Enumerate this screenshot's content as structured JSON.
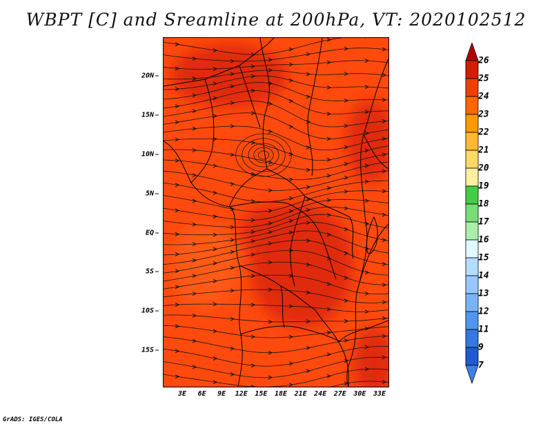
{
  "title": "WBPT [C] and Sreamline at 200hPa, VT: 2020102512",
  "credit": "GrADS: IGES/COLA",
  "map": {
    "lat_labels": [
      "20N",
      "15N",
      "10N",
      "5N",
      "EQ",
      "5S",
      "10S",
      "15S"
    ],
    "lon_labels": [
      "3E",
      "6E",
      "9E",
      "12E",
      "15E",
      "18E",
      "21E",
      "24E",
      "27E",
      "30E",
      "33E"
    ],
    "field_colors": {
      "base": "#ff4a0e",
      "dark": "#e02a08",
      "light": "#ff5a14"
    }
  },
  "colorbar": {
    "labels": [
      "26",
      "25",
      "24",
      "23",
      "22",
      "21",
      "20",
      "19",
      "18",
      "17",
      "16",
      "15",
      "14",
      "13",
      "12",
      "11",
      "9",
      "7"
    ],
    "colors": [
      "#b40000",
      "#d21e00",
      "#f04000",
      "#ff6600",
      "#ff9900",
      "#ffb833",
      "#ffd966",
      "#fff0a0",
      "#44cc44",
      "#77dd77",
      "#aaeea8",
      "#e0f8ff",
      "#b4dcff",
      "#96c8ff",
      "#7ab4f5",
      "#5096f0",
      "#3478e0",
      "#1e5ad2",
      "#3c82e6"
    ]
  }
}
